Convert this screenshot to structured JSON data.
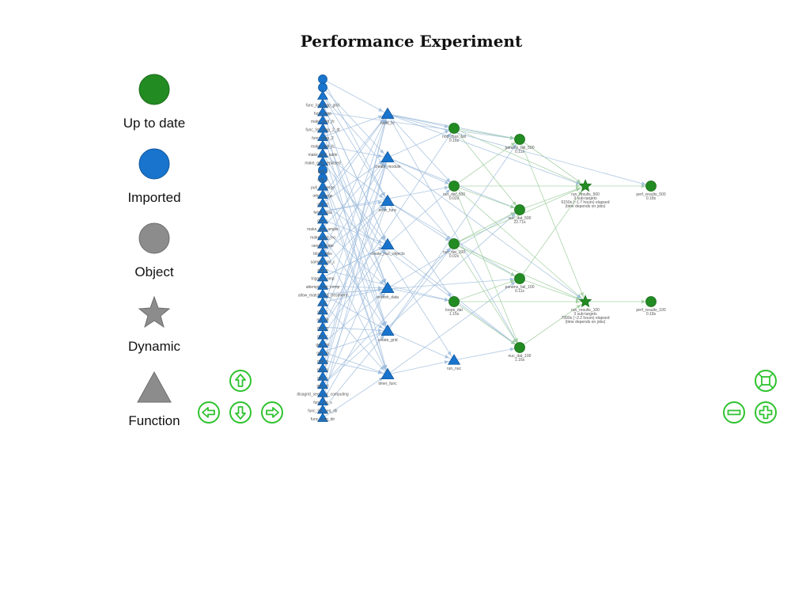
{
  "title": "Performance Experiment",
  "colors": {
    "up_to_date": "#228b22",
    "imported": "#1874cd",
    "object_gray": "#8c8c8c",
    "edge": "#9fbcdc",
    "edge_green": "#9ccc9c",
    "nav": "#2fc32f"
  },
  "legend": [
    {
      "label": "Up to date",
      "shape": "circle",
      "color": "#228b22"
    },
    {
      "label": "Imported",
      "shape": "circle",
      "color": "#1874cd"
    },
    {
      "label": "Object",
      "shape": "circle",
      "color": "#8c8c8c"
    },
    {
      "label": "Dynamic",
      "shape": "star",
      "color": "#8c8c8c"
    },
    {
      "label": "Function",
      "shape": "triangle",
      "color": "#8c8c8c"
    }
  ],
  "left_column_labels": [
    "",
    "",
    "",
    "func_list_map_grid",
    "func_map",
    "make_grid_fc",
    "func_list_map_2_dt",
    "func_map_2",
    "make_grid_fc",
    "make_grid_table",
    "make_grid_replaced",
    "grid_i",
    "add_c",
    "pull_c_merge",
    "info_merge",
    "pull_p",
    "fetch_data",
    "gen_c",
    "make_grid_ample",
    "make_grid_eq",
    "range_finder",
    "block_jobs",
    "sample_job_c",
    "pull_p",
    "trigger_comp",
    "attempt_seq_comp",
    "allow_match_seq_trestment",
    "c_tr",
    "gen_c",
    "run_lib",
    "gen_p",
    "gen_c",
    "gen_list",
    "gen_m",
    "gen_p",
    "gen_p",
    "gen_c",
    "gen_nl",
    "disagrid_seq_c_tr_computing",
    "func_list_s",
    "func_list_seq_dir",
    "func_map_dir"
  ],
  "mid_functions": [
    "build_lic",
    "create_module",
    "error_func",
    "create_nuc_objects",
    "refresh_data",
    "create_grid",
    "timer_func"
  ],
  "objects_col3": [
    {
      "label": "nod_fhas_fail",
      "sub": "0.16s"
    },
    {
      "label": "run_dat_500",
      "sub": "0.02s"
    },
    {
      "label": "run_dat_100",
      "sub": "0.02s"
    },
    {
      "label": "loops_dat",
      "sub": "1.15s"
    },
    {
      "label": "run_nuc",
      "sub": ""
    }
  ],
  "objects_col4": [
    {
      "label": "params_fail_500",
      "sub": "0.11s"
    },
    {
      "label": "nuc_dat_500",
      "sub": "22.71s"
    },
    {
      "label": "params_fail_100",
      "sub": "0.11s"
    },
    {
      "label": "nuc_dat_100",
      "sub": "1.16s"
    }
  ],
  "dynamic_nodes": [
    {
      "label": "run_results_500",
      "sub1": "3 sub-targets",
      "sub2": "6150s (~1.7 hours) elapsed",
      "sub3": "(time depends on jobs)"
    },
    {
      "label": "run_results_100",
      "sub1": "3 sub-targets",
      "sub2": "7990s (~2.2 hours) elapsed",
      "sub3": "(time depends on jobs)"
    }
  ],
  "final_nodes": [
    {
      "label": "perf_results_500",
      "sub": "0.18s"
    },
    {
      "label": "perf_results_100",
      "sub": "0.18s"
    }
  ]
}
